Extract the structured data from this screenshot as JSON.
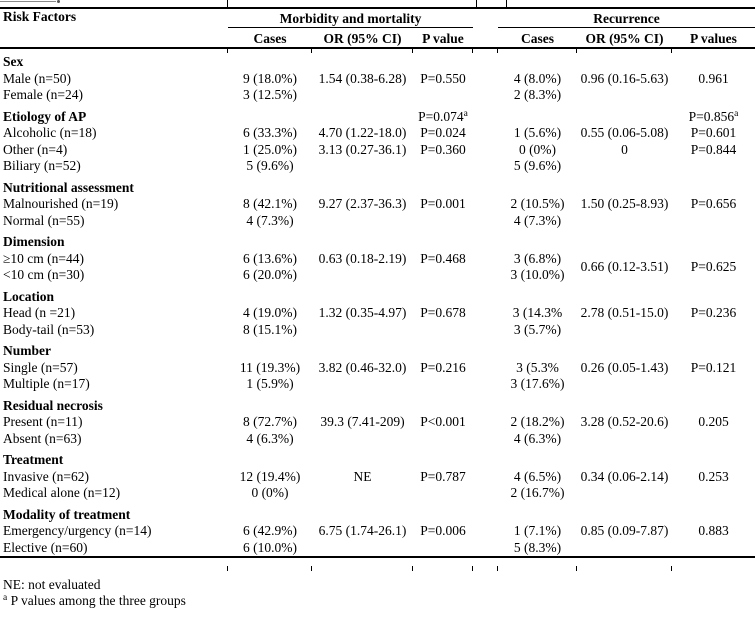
{
  "colors": {
    "text": "#000000",
    "background": "#ffffff",
    "rule": "#000000"
  },
  "table": {
    "risk_factors_header": "Risk Factors",
    "group_headers": [
      "Morbidity and mortality",
      "Recurrence"
    ],
    "sub_headers": [
      "Cases",
      "OR (95% CI)",
      "P value",
      "Cases",
      "OR (95% CI)",
      "P values"
    ],
    "sections": [
      {
        "label": "Sex",
        "m_p": "",
        "r_p": "",
        "rows": [
          {
            "label": "Male (n=50)",
            "cells": [
              "9 (18.0%)",
              "1.54 (0.38-6.28)",
              "P=0.550",
              "4 (8.0%)",
              "0.96 (0.16-5.63)",
              "0.961"
            ]
          },
          {
            "label": "Female (n=24)",
            "cells": [
              "3 (12.5%)",
              "",
              "",
              "2 (8.3%)",
              "",
              ""
            ]
          }
        ]
      },
      {
        "label": "Etiology of AP",
        "m_p": {
          "text": "P=0.074",
          "sup": "a"
        },
        "r_p": {
          "text": "P=0.856",
          "sup": "a"
        },
        "rows": [
          {
            "label": "Alcoholic (n=18)",
            "cells": [
              "6 (33.3%)",
              "4.70 (1.22-18.0)",
              "P=0.024",
              "1 (5.6%)",
              "0.55 (0.06-5.08)",
              "P=0.601"
            ]
          },
          {
            "label": "Other (n=4)",
            "cells": [
              "1 (25.0%)",
              "3.13 (0.27-36.1)",
              "P=0.360",
              "0 (0%)",
              "0",
              "P=0.844"
            ]
          },
          {
            "label": "Biliary (n=52)",
            "cells": [
              "5 (9.6%)",
              "",
              "",
              "5 (9.6%)",
              "",
              ""
            ]
          }
        ]
      },
      {
        "label": "Nutritional assessment",
        "m_p": "",
        "r_p": "",
        "rows": [
          {
            "label": "Malnourished (n=19)",
            "cells": [
              "8 (42.1%)",
              "9.27 (2.37-36.3)",
              "P=0.001",
              "2 (10.5%)",
              "1.50 (0.25-8.93)",
              "P=0.656"
            ]
          },
          {
            "label": "Normal (n=55)",
            "cells": [
              "4 (7.3%)",
              "",
              "",
              "4 (7.3%)",
              "",
              ""
            ]
          }
        ]
      },
      {
        "label": "Dimension",
        "m_p": "",
        "r_p": "",
        "rows": [
          {
            "label": "≥10 cm (n=44)",
            "cells": [
              "6 (13.6%)",
              "0.63 (0.18-2.19)",
              "P=0.468",
              {
                "lines": [
                  "3 (6.8%)",
                  "3 (10.0%)"
                ],
                "rowspan": 2
              },
              {
                "text": "0.66 (0.12-3.51)",
                "rowspan": 2
              },
              {
                "text": "P=0.625",
                "rowspan": 2
              }
            ]
          },
          {
            "label": "<10 cm (n=30)",
            "cells": [
              "6 (20.0%)",
              "",
              "",
              null,
              null,
              null
            ]
          }
        ]
      },
      {
        "label": "Location",
        "m_p": "",
        "r_p": "",
        "rows": [
          {
            "label": "Head (n =21)",
            "cells": [
              "4 (19.0%)",
              "1.32 (0.35-4.97)",
              "P=0.678",
              "3 (14.3%",
              "2.78 (0.51-15.0)",
              "P=0.236"
            ]
          },
          {
            "label": "Body-tail (n=53)",
            "cells": [
              "8 (15.1%)",
              "",
              "",
              "3 (5.7%)",
              "",
              ""
            ]
          }
        ]
      },
      {
        "label": "Number",
        "m_p": "",
        "r_p": "",
        "rows": [
          {
            "label": "Single (n=57)",
            "cells": [
              "11 (19.3%)",
              "3.82 (0.46-32.0)",
              "P=0.216",
              "3 (5.3%",
              "0.26 (0.05-1.43)",
              "P=0.121"
            ]
          },
          {
            "label": "Multiple (n=17)",
            "cells": [
              "1 (5.9%)",
              "",
              "",
              "3 (17.6%)",
              "",
              ""
            ]
          }
        ]
      },
      {
        "label": "Residual necrosis",
        "m_p": "",
        "r_p": "",
        "rows": [
          {
            "label": "Present (n=11)",
            "cells": [
              "8 (72.7%)",
              "39.3 (7.41-209)",
              "P<0.001",
              "2 (18.2%)",
              "3.28 (0.52-20.6)",
              "0.205"
            ]
          },
          {
            "label": "Absent (n=63)",
            "cells": [
              "4 (6.3%)",
              "",
              "",
              "4 (6.3%)",
              "",
              ""
            ]
          }
        ]
      },
      {
        "label": "Treatment",
        "m_p": "",
        "r_p": "",
        "rows": [
          {
            "label": "Invasive (n=62)",
            "cells": [
              "12 (19.4%)",
              "NE",
              "P=0.787",
              "4 (6.5%)",
              "0.34 (0.06-2.14)",
              "0.253"
            ]
          },
          {
            "label": "Medical alone (n=12)",
            "cells": [
              "0 (0%)",
              "",
              "",
              "2 (16.7%)",
              "",
              ""
            ]
          }
        ]
      },
      {
        "label": "Modality of treatment",
        "m_p": "",
        "r_p": "",
        "rows": [
          {
            "label": "Emergency/urgency (n=14)",
            "cells": [
              "6 (42.9%)",
              "6.75 (1.74-26.1)",
              "P=0.006",
              "1 (7.1%)",
              "0.85 (0.09-7.87)",
              "0.883"
            ]
          },
          {
            "label": "Elective (n=60)",
            "cells": [
              "6 (10.0%)",
              "",
              "",
              "5 (8.3%)",
              "",
              ""
            ]
          }
        ]
      }
    ]
  },
  "footnotes": {
    "ne": "NE: not evaluated",
    "a_sup": "a",
    "a_text": " P values among the three groups"
  }
}
